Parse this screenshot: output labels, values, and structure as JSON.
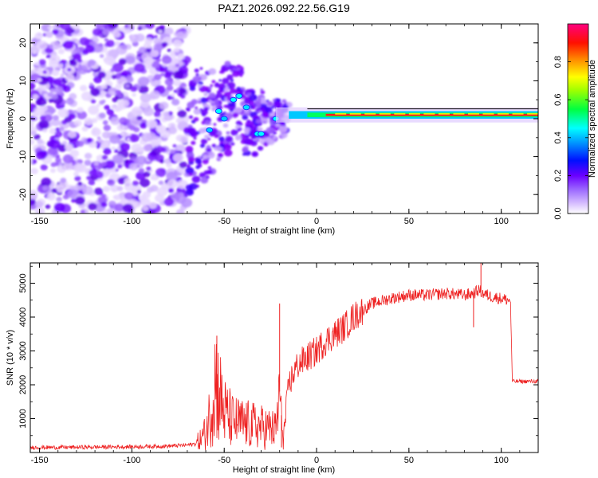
{
  "title": "PAZ1.2026.092.22.56.G19",
  "chart_data": [
    {
      "type": "heatmap",
      "name": "spectrogram",
      "xlabel": "Height of straight line (km)",
      "ylabel": "Frequency (Hz)",
      "xlim": [
        -155,
        120
      ],
      "ylim": [
        -25,
        25
      ],
      "x_ticks": [
        -150,
        -100,
        -50,
        0,
        50,
        100
      ],
      "y_ticks": [
        -20,
        -10,
        0,
        10,
        20
      ],
      "colorbar": {
        "label": "Normalized spectral amplitude",
        "range": [
          0,
          1
        ],
        "ticks": [
          0.0,
          0.2,
          0.4,
          0.6,
          0.8
        ],
        "colors": [
          "#ffffff",
          "#c9a9ff",
          "#8a2be2",
          "#5a00ff",
          "#0000ff",
          "#00ffff",
          "#00ff00",
          "#ffff00",
          "#ff8800",
          "#ff0000",
          "#ff0080"
        ]
      },
      "signal": {
        "description_points": [
          {
            "x": -150,
            "noise_level": 0.3
          },
          {
            "x": -70,
            "noise_level": 0.3
          }
        ],
        "carrier_track": [
          {
            "x": -60,
            "y": -3
          },
          {
            "x": -50,
            "y": 2
          },
          {
            "x": -40,
            "y": 1
          },
          {
            "x": -30,
            "y": -1
          },
          {
            "x": -20,
            "y": 0
          },
          {
            "x": -10,
            "y": 2
          },
          {
            "x": 0,
            "y": 1.5
          },
          {
            "x": 10,
            "y": 1
          },
          {
            "x": 20,
            "y": 1
          },
          {
            "x": 50,
            "y": 1
          },
          {
            "x": 100,
            "y": 1
          },
          {
            "x": 120,
            "y": 1
          }
        ]
      }
    },
    {
      "type": "line",
      "name": "snr",
      "xlabel": "Height of straight line (km)",
      "ylabel": "SNR (10 * v/v)",
      "xlim": [
        -155,
        120
      ],
      "ylim": [
        0,
        5600
      ],
      "x_ticks": [
        -150,
        -100,
        -50,
        0,
        50,
        100
      ],
      "y_ticks": [
        1000,
        2000,
        3000,
        4000,
        5000
      ],
      "series": [
        {
          "name": "SNR",
          "color": "#ee2222",
          "x": [
            -155,
            -140,
            -120,
            -100,
            -80,
            -70,
            -65,
            -60,
            -57,
            -55,
            -53,
            -50,
            -45,
            -40,
            -35,
            -30,
            -25,
            -22,
            -20,
            -18,
            -15,
            -12,
            -10,
            -5,
            0,
            5,
            10,
            15,
            20,
            25,
            30,
            40,
            50,
            60,
            70,
            80,
            85,
            88,
            90,
            95,
            100,
            104,
            105,
            106,
            110,
            120
          ],
          "y": [
            150,
            150,
            160,
            170,
            190,
            220,
            260,
            600,
            1300,
            2200,
            1800,
            1200,
            900,
            850,
            800,
            750,
            700,
            650,
            1800,
            400,
            2000,
            2400,
            2600,
            2800,
            3000,
            3300,
            3500,
            3700,
            4000,
            4200,
            4400,
            4550,
            4650,
            4650,
            4700,
            4650,
            4700,
            4800,
            4700,
            4600,
            4550,
            4500,
            4450,
            2100,
            2100,
            2100
          ]
        }
      ]
    }
  ]
}
